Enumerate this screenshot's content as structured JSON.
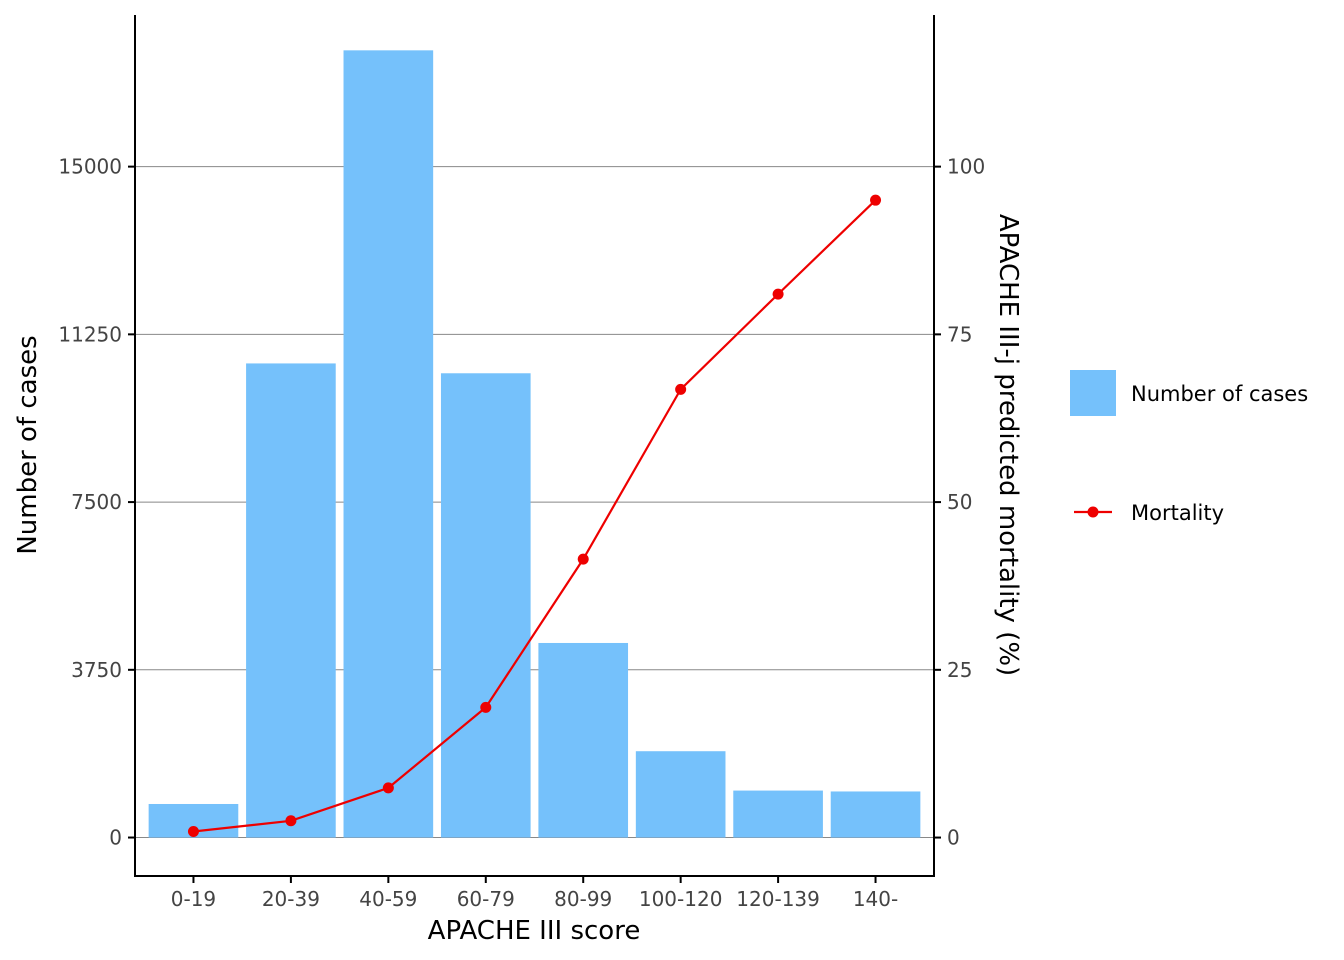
{
  "chart_data": {
    "type": "bar+line",
    "categories": [
      "0-19",
      "20-39",
      "40-59",
      "60-79",
      "80-99",
      "100-120",
      "120-139",
      "140-"
    ],
    "series": [
      {
        "name": "Number of cases",
        "type": "bar",
        "axis": "left",
        "values": [
          750,
          10600,
          17600,
          10380,
          4350,
          1930,
          1050,
          1030
        ]
      },
      {
        "name": "Mortality",
        "type": "line",
        "axis": "right",
        "values": [
          0.9,
          2.5,
          7.4,
          19.4,
          41.5,
          66.8,
          81.0,
          95.0
        ]
      }
    ],
    "xlabel": "APACHE III score",
    "ylabel_left": "Number of cases",
    "ylabel_right": "APACHE III-j predicted mortality (%)",
    "yticks_left": [
      0,
      3750,
      7500,
      11250,
      15000
    ],
    "yticks_right": [
      0,
      25,
      50,
      75,
      100
    ],
    "ylim_left": [
      -860,
      18390
    ],
    "ylim_right": [
      -5.73,
      122.6
    ],
    "grid": "horizontal major",
    "legend_position": "right",
    "colors": {
      "bar": "#75c1fb",
      "line": "#ee0000",
      "grid": "#888888",
      "axis": "#000000"
    }
  }
}
